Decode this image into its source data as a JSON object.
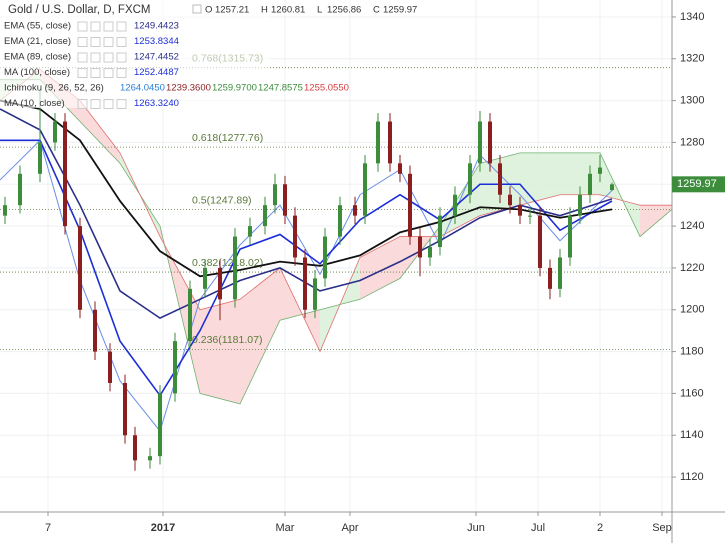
{
  "chart_data": {
    "type": "candlestick",
    "title": "Gold / U.S. Dollar, D, FXCM",
    "ohlc_labels": [
      "O",
      "H",
      "L",
      "C"
    ],
    "x": [
      5,
      20,
      40,
      55,
      65,
      80,
      95,
      110,
      125,
      135,
      150,
      160,
      175,
      190,
      205,
      220,
      235,
      250,
      265,
      275,
      285,
      295,
      305,
      315,
      325,
      340,
      355,
      365,
      378,
      390,
      400,
      410,
      420,
      430,
      440,
      455,
      470,
      480,
      490,
      500,
      510,
      520,
      530,
      540,
      550,
      560,
      570,
      580,
      590,
      600,
      612
    ],
    "open": [
      1245,
      1250,
      1265,
      1280,
      1290,
      1240,
      1200,
      1180,
      1165,
      1140,
      1128,
      1130,
      1160,
      1185,
      1210,
      1220,
      1205,
      1235,
      1240,
      1250,
      1260,
      1245,
      1225,
      1200,
      1215,
      1235,
      1250,
      1245,
      1270,
      1290,
      1270,
      1265,
      1235,
      1225,
      1230,
      1245,
      1255,
      1270,
      1290,
      1270,
      1255,
      1250,
      1245,
      1245,
      1220,
      1210,
      1225,
      1245,
      1255,
      1265,
      1257.21
    ],
    "high": [
      1254,
      1269,
      1305,
      1294,
      1294,
      1244,
      1204,
      1184,
      1169,
      1144,
      1134,
      1164,
      1189,
      1214,
      1224,
      1224,
      1239,
      1244,
      1254,
      1265,
      1264,
      1249,
      1229,
      1219,
      1239,
      1254,
      1254,
      1274,
      1294,
      1294,
      1274,
      1269,
      1239,
      1234,
      1249,
      1259,
      1274,
      1295,
      1294,
      1274,
      1259,
      1254,
      1249,
      1249,
      1224,
      1229,
      1249,
      1259,
      1269,
      1274,
      1260.81
    ],
    "low": [
      1241,
      1246,
      1261,
      1276,
      1236,
      1196,
      1176,
      1161,
      1136,
      1123,
      1124,
      1126,
      1156,
      1181,
      1206,
      1195,
      1201,
      1231,
      1236,
      1246,
      1241,
      1221,
      1196,
      1196,
      1211,
      1231,
      1241,
      1241,
      1266,
      1266,
      1261,
      1231,
      1216,
      1221,
      1226,
      1241,
      1251,
      1266,
      1266,
      1251,
      1246,
      1241,
      1241,
      1216,
      1205,
      1206,
      1221,
      1241,
      1251,
      1261,
      1256.86
    ],
    "close": [
      1250,
      1265,
      1280,
      1290,
      1240,
      1200,
      1180,
      1165,
      1140,
      1128,
      1130,
      1160,
      1185,
      1210,
      1220,
      1205,
      1235,
      1240,
      1250,
      1260,
      1245,
      1225,
      1200,
      1215,
      1235,
      1250,
      1245,
      1270,
      1290,
      1270,
      1265,
      1235,
      1225,
      1230,
      1245,
      1255,
      1270,
      1290,
      1270,
      1255,
      1250,
      1245,
      1245,
      1220,
      1210,
      1225,
      1245,
      1255,
      1265,
      1268,
      1259.97
    ],
    "up_color": "#3c8c3c",
    "down_color": "#8b1e1e",
    "line_x": [
      0,
      40,
      80,
      120,
      160,
      200,
      240,
      280,
      320,
      360,
      400,
      440,
      480,
      520,
      560,
      612
    ],
    "lines": [
      {
        "color": "#6a8ee8",
        "width": 1,
        "values": [
          1262,
          1281,
          1214,
          1166,
          1142,
          1205,
          1231,
          1250,
          1217,
          1255,
          1267,
          1231,
          1274,
          1255,
          1233,
          1257
        ]
      },
      {
        "color": "#1c2fd6",
        "width": 1.6,
        "values": [
          1281,
          1281,
          1238,
          1185,
          1159,
          1190,
          1229,
          1236,
          1222,
          1243,
          1255,
          1243,
          1260,
          1260,
          1238,
          1252
        ]
      },
      {
        "color": "#2a2f8a",
        "width": 1.6,
        "values": [
          1296,
          1286,
          1250,
          1209,
          1196,
          1205,
          1214,
          1220,
          1209,
          1214,
          1223,
          1233,
          1244,
          1250,
          1245,
          1253
        ]
      },
      {
        "color": "#111111",
        "width": 1.8,
        "values": [
          1300,
          1296,
          1281,
          1252,
          1228,
          1216,
          1219,
          1223,
          1221,
          1226,
          1237,
          1242,
          1249,
          1248,
          1244,
          1248
        ]
      }
    ],
    "cloud_x": [
      0,
      40,
      80,
      120,
      160,
      200,
      240,
      280,
      320,
      360,
      400,
      440,
      480,
      520,
      560,
      600,
      640,
      672
    ],
    "span_a": [
      1310,
      1310,
      1290,
      1270,
      1240,
      1160,
      1155,
      1195,
      1200,
      1205,
      1215,
      1240,
      1270,
      1275,
      1275,
      1275,
      1235,
      1248
    ],
    "span_b": [
      1300,
      1315,
      1300,
      1275,
      1235,
      1200,
      1205,
      1220,
      1180,
      1225,
      1235,
      1235,
      1245,
      1250,
      1255,
      1255,
      1250,
      1250
    ],
    "cloud_up_color": "#d8f0d8",
    "cloud_down_color": "#f9d4d4",
    "fib_levels": [
      {
        "value": 1315.73,
        "label": "0.768(1315.73)"
      },
      {
        "value": 1277.76,
        "label": "0.618(1277.76)"
      },
      {
        "value": 1247.89,
        "label": "0.5(1247.89)"
      },
      {
        "value": 1218.02,
        "label": "0.382(1218.02)"
      },
      {
        "value": 1181.07,
        "label": "0.236(1181.07)"
      }
    ],
    "fib_label_x": 192,
    "fib_color": "#5a7a3a",
    "indicators": [
      {
        "name": "EMA (55, close)",
        "values": [
          "1249.4423"
        ],
        "colors": [
          "#2a2f8a"
        ]
      },
      {
        "name": "EMA (21, close)",
        "values": [
          "1253.8344"
        ],
        "colors": [
          "#1c2fd6"
        ]
      },
      {
        "name": "EMA (89, close)",
        "values": [
          "1247.4452"
        ],
        "colors": [
          "#2a2f8a"
        ]
      },
      {
        "name": "MA (100, close)",
        "values": [
          "1252.4487"
        ],
        "colors": [
          "#1c2fd6"
        ]
      },
      {
        "name": "Ichimoku (9, 26, 52, 26)",
        "values": [
          "1264.0450",
          "1239.3600",
          "1259.9700",
          "1247.8575",
          "1255.0550"
        ],
        "colors": [
          "#2a7fd6",
          "#8b1e1e",
          "#3c8c3c",
          "#3c8c3c",
          "#d63c3c"
        ]
      },
      {
        "name": "MA (10, close)",
        "values": [
          "1263.3240"
        ],
        "colors": [
          "#1c2fd6"
        ]
      }
    ],
    "last_price": 1259.97,
    "last_price_color": "#3c8c3c",
    "xlim": [
      0,
      672
    ],
    "xticks": [
      {
        "value": 48,
        "label": "7"
      },
      {
        "value": 163,
        "label": "2017"
      },
      {
        "value": 285,
        "label": "Mar"
      },
      {
        "value": 350,
        "label": "Apr"
      },
      {
        "value": 476,
        "label": "Jun"
      },
      {
        "value": 538,
        "label": "Jul"
      },
      {
        "value": 600,
        "label": "2"
      },
      {
        "value": 662,
        "label": "Sep"
      }
    ],
    "ylim": [
      1103.3,
      1348.1
    ],
    "yticks": [
      1120,
      1140,
      1160,
      1180,
      1200,
      1220,
      1240,
      1260,
      1280,
      1300,
      1320,
      1340
    ],
    "grid": true
  }
}
